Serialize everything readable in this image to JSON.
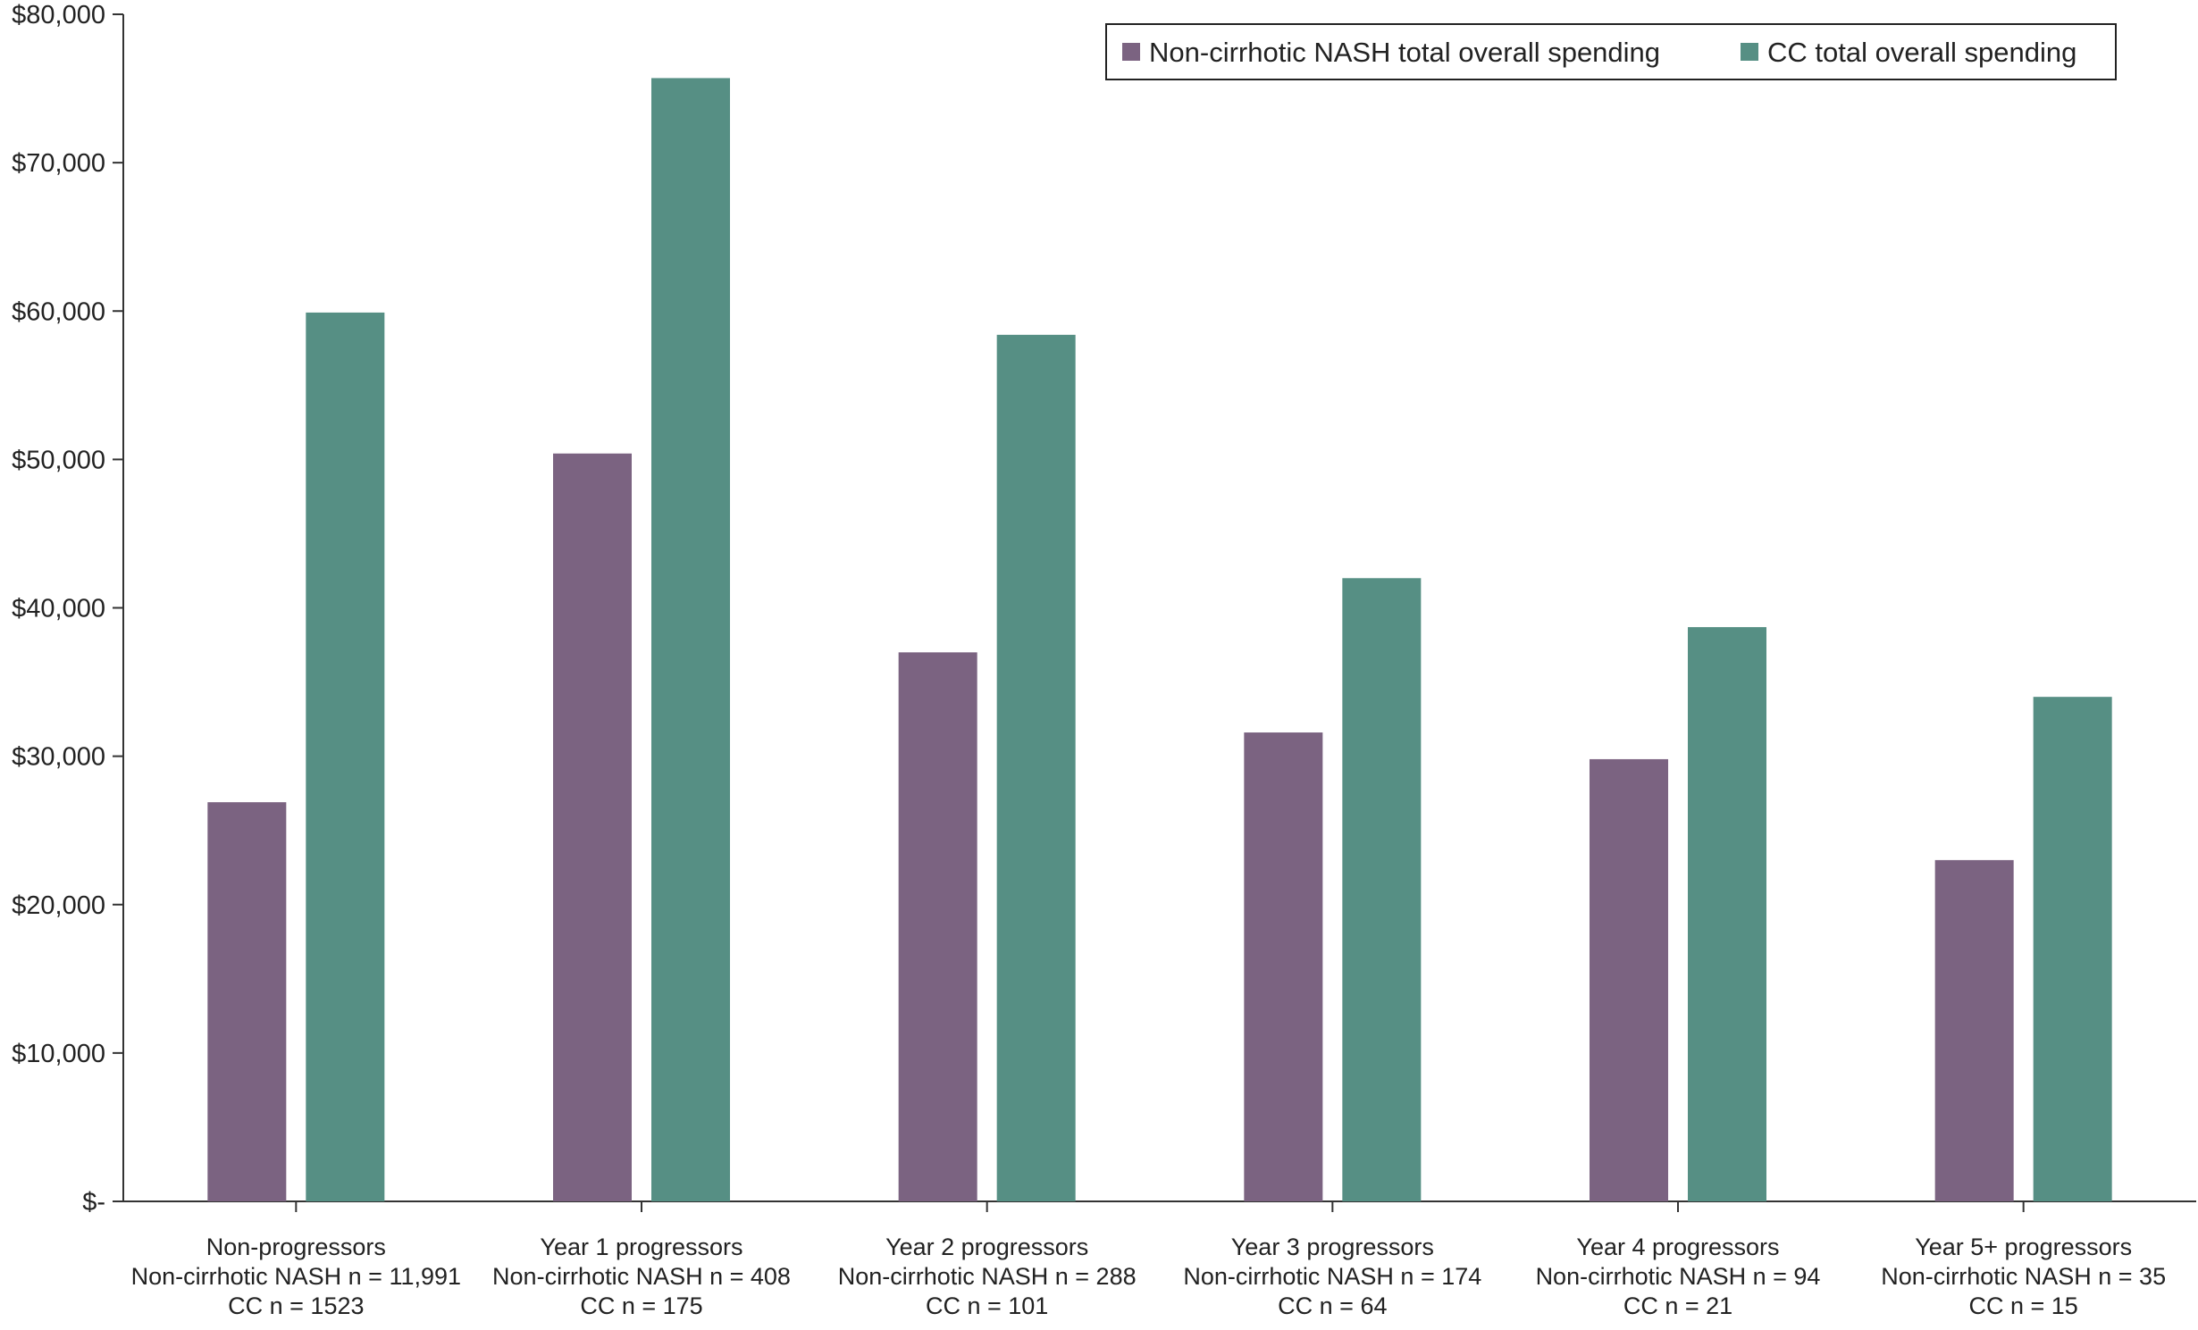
{
  "chart_data": {
    "type": "bar",
    "title": "",
    "xlabel": "",
    "ylabel": "",
    "ylim": [
      0,
      80000
    ],
    "y_ticks": [
      0,
      10000,
      20000,
      30000,
      40000,
      50000,
      60000,
      70000,
      80000
    ],
    "y_tick_labels": [
      "$-",
      "$10,000",
      "$20,000",
      "$30,000",
      "$40,000",
      "$50,000",
      "$60,000",
      "$70,000",
      "$80,000"
    ],
    "grid": false,
    "legend_placement": "top-right",
    "categories": [
      [
        "Non-progressors",
        "Non-cirrhotic NASH n = 11,991",
        "CC n = 1523"
      ],
      [
        "Year 1 progressors",
        "Non-cirrhotic NASH n = 408",
        "CC n = 175"
      ],
      [
        "Year 2 progressors",
        "Non-cirrhotic NASH n = 288",
        "CC n = 101"
      ],
      [
        "Year 3 progressors",
        "Non-cirrhotic NASH n = 174",
        "CC n = 64"
      ],
      [
        "Year 4 progressors",
        "Non-cirrhotic NASH n = 94",
        "CC n = 21"
      ],
      [
        "Year 5+ progressors",
        "Non-cirrhotic NASH n = 35",
        "CC n = 15"
      ]
    ],
    "series": [
      {
        "name": "Non-cirrhotic NASH total overall spending",
        "color": "#7b6381",
        "values": [
          26900,
          50400,
          37000,
          31600,
          29800,
          23000
        ]
      },
      {
        "name": "CC total overall spending",
        "color": "#568f84",
        "values": [
          59900,
          75700,
          58400,
          42000,
          38700,
          34000
        ]
      }
    ]
  }
}
